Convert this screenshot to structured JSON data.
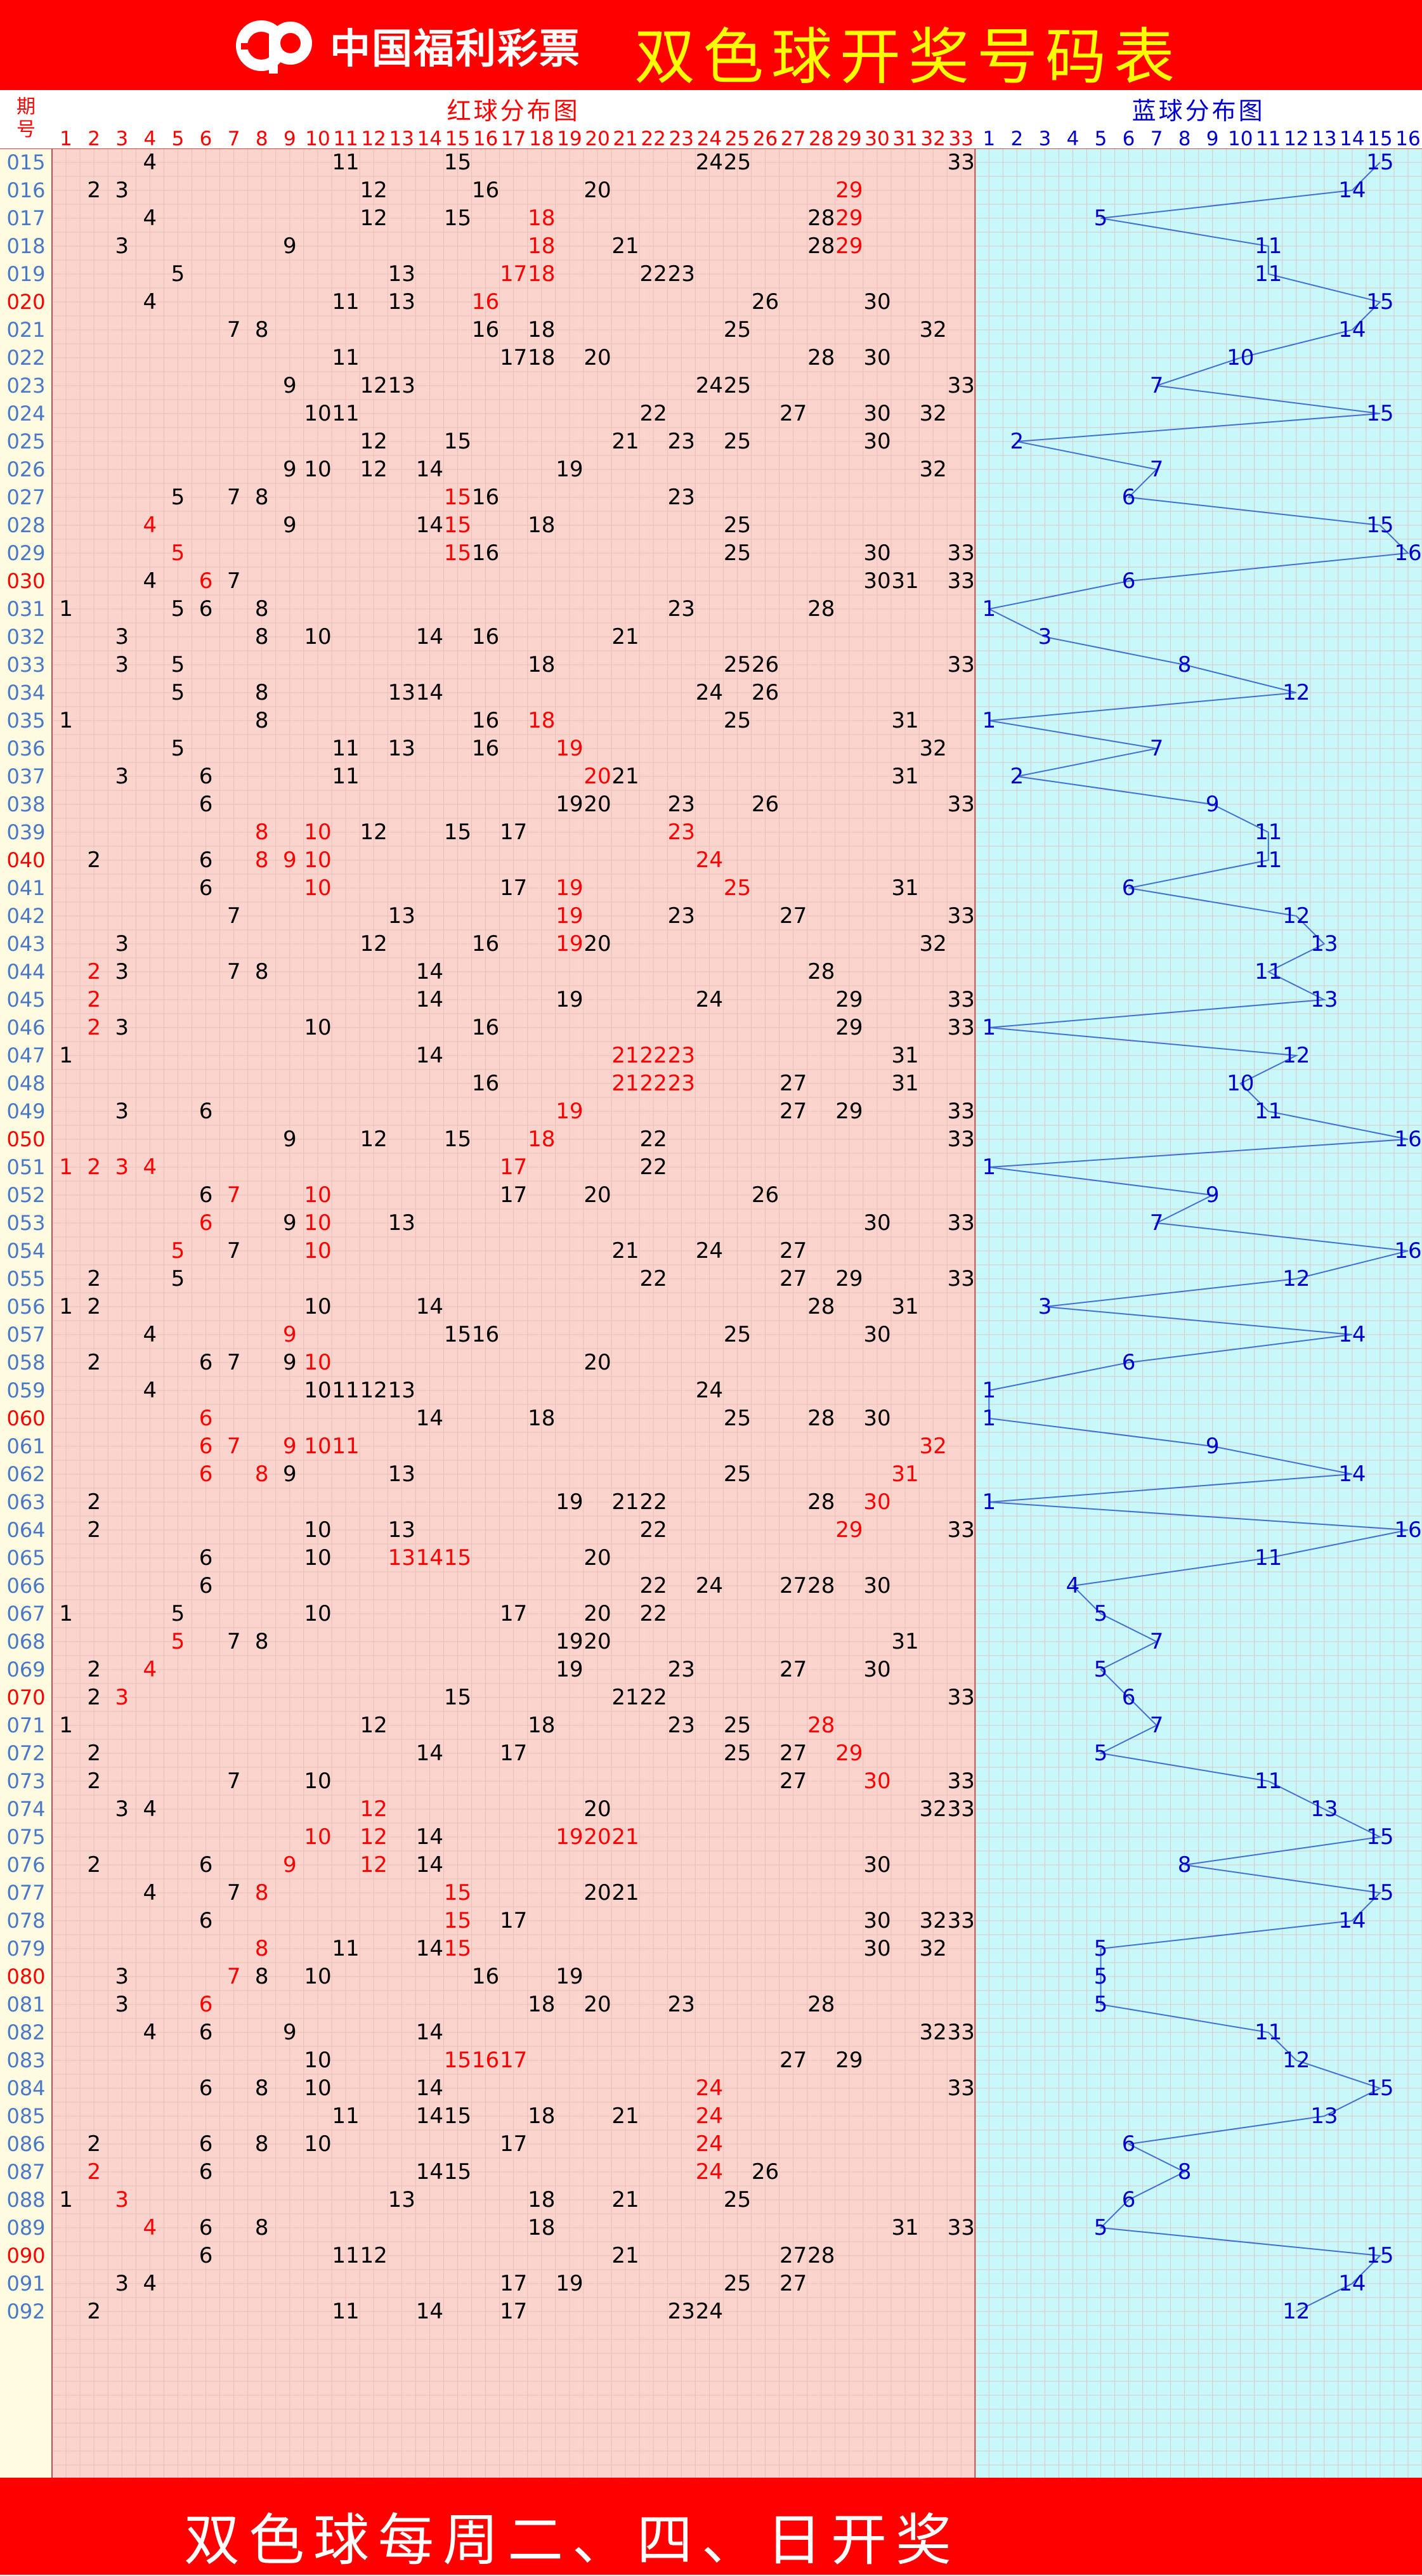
{
  "header": {
    "logo_text": "中国福利彩票",
    "title": "双色球开奖号码表"
  },
  "footer": {
    "text": "双色球每周二、四、日开奖"
  },
  "colors": {
    "banner_red": "#ff0000",
    "title_yellow": "#ffff00",
    "red_zone_bg": "#fbd5cd",
    "blue_zone_bg": "#c8f8fa",
    "period_bg": "#fffbe0",
    "number_black": "#000000",
    "repeat_red": "#ff0000",
    "blue_text": "#0000cc",
    "period_blue": "#4a78c8",
    "line_blue": "#3f6fd0"
  },
  "table": {
    "period_header": "期号",
    "red_zone_title": "红球分布图",
    "blue_zone_title": "蓝球分布图"
  },
  "chart_data": {
    "type": "table",
    "red_columns": [
      "1",
      "2",
      "3",
      "4",
      "5",
      "6",
      "7",
      "8",
      "9",
      "10",
      "11",
      "12",
      "13",
      "14",
      "15",
      "16",
      "17",
      "18",
      "19",
      "20",
      "21",
      "22",
      "23",
      "24",
      "25",
      "26",
      "27",
      "28",
      "29",
      "30",
      "31",
      "32",
      "33"
    ],
    "blue_columns": [
      "1",
      "2",
      "3",
      "4",
      "5",
      "6",
      "7",
      "8",
      "9",
      "10",
      "11",
      "12",
      "13",
      "14",
      "15",
      "16"
    ],
    "draws": [
      {
        "period": "015",
        "red": [
          4,
          11,
          15,
          24,
          25,
          33
        ],
        "blue": 15
      },
      {
        "period": "016",
        "red": [
          2,
          3,
          12,
          16,
          20,
          29
        ],
        "hot": [
          29
        ],
        "blue": 14
      },
      {
        "period": "017",
        "red": [
          4,
          12,
          15,
          18,
          28,
          29
        ],
        "hot": [
          18,
          29
        ],
        "blue": 5
      },
      {
        "period": "018",
        "red": [
          3,
          9,
          18,
          21,
          28,
          29
        ],
        "hot": [
          18,
          29
        ],
        "blue": 11
      },
      {
        "period": "019",
        "red": [
          5,
          13,
          17,
          18,
          22,
          23
        ],
        "hot": [
          17,
          18
        ],
        "blue": 11
      },
      {
        "period": "020",
        "red": [
          4,
          11,
          13,
          16,
          26,
          30
        ],
        "hot": [
          16
        ],
        "blue": 15
      },
      {
        "period": "021",
        "red": [
          7,
          8,
          16,
          18,
          25,
          32
        ],
        "blue": 14
      },
      {
        "period": "022",
        "red": [
          11,
          17,
          18,
          20,
          28,
          30
        ],
        "blue": 10
      },
      {
        "period": "023",
        "red": [
          9,
          12,
          13,
          24,
          25,
          33
        ],
        "blue": 7
      },
      {
        "period": "024",
        "red": [
          10,
          11,
          22,
          27,
          30,
          32
        ],
        "blue": 15
      },
      {
        "period": "025",
        "red": [
          12,
          15,
          21,
          23,
          25,
          30
        ],
        "blue": 2
      },
      {
        "period": "026",
        "red": [
          9,
          10,
          12,
          14,
          19,
          32
        ],
        "blue": 7
      },
      {
        "period": "027",
        "red": [
          5,
          7,
          8,
          15,
          16,
          23
        ],
        "hot": [
          15
        ],
        "blue": 6
      },
      {
        "period": "028",
        "red": [
          4,
          9,
          14,
          15,
          18,
          25
        ],
        "hot": [
          4,
          15
        ],
        "blue": 15
      },
      {
        "period": "029",
        "red": [
          5,
          15,
          16,
          25,
          30,
          33
        ],
        "hot": [
          5,
          15
        ],
        "blue": 16
      },
      {
        "period": "030",
        "red": [
          4,
          6,
          7,
          30,
          31,
          33
        ],
        "hot": [
          6
        ],
        "blue": 6
      },
      {
        "period": "031",
        "red": [
          1,
          5,
          6,
          8,
          23,
          28
        ],
        "blue": 1
      },
      {
        "period": "032",
        "red": [
          3,
          8,
          10,
          14,
          16,
          21
        ],
        "blue": 3
      },
      {
        "period": "033",
        "red": [
          3,
          5,
          18,
          25,
          26,
          33
        ],
        "blue": 8
      },
      {
        "period": "034",
        "red": [
          5,
          8,
          13,
          14,
          24,
          26
        ],
        "blue": 12
      },
      {
        "period": "035",
        "red": [
          1,
          8,
          16,
          18,
          25,
          31
        ],
        "hot": [
          18
        ],
        "blue": 1
      },
      {
        "period": "036",
        "red": [
          5,
          11,
          13,
          16,
          19,
          32
        ],
        "hot": [
          19
        ],
        "blue": 7
      },
      {
        "period": "037",
        "red": [
          3,
          6,
          11,
          20,
          21,
          31
        ],
        "hot": [
          20
        ],
        "blue": 2
      },
      {
        "period": "038",
        "red": [
          6,
          19,
          20,
          23,
          26,
          33
        ],
        "blue": 9
      },
      {
        "period": "039",
        "red": [
          8,
          10,
          12,
          15,
          17,
          23
        ],
        "hot": [
          8,
          10,
          23
        ],
        "blue": 11
      },
      {
        "period": "040",
        "red": [
          2,
          6,
          8,
          9,
          10,
          24
        ],
        "hot": [
          8,
          9,
          10,
          24
        ],
        "blue": 11
      },
      {
        "period": "041",
        "red": [
          6,
          10,
          17,
          19,
          25,
          31
        ],
        "hot": [
          10,
          19,
          25
        ],
        "blue": 6
      },
      {
        "period": "042",
        "red": [
          7,
          13,
          19,
          23,
          27,
          33
        ],
        "hot": [
          19
        ],
        "blue": 12
      },
      {
        "period": "043",
        "red": [
          3,
          12,
          16,
          19,
          20,
          32
        ],
        "hot": [
          19
        ],
        "blue": 13
      },
      {
        "period": "044",
        "red": [
          2,
          3,
          7,
          8,
          14,
          28
        ],
        "hot": [
          2
        ],
        "blue": 11
      },
      {
        "period": "045",
        "red": [
          2,
          14,
          19,
          24,
          29,
          33
        ],
        "hot": [
          2
        ],
        "blue": 13
      },
      {
        "period": "046",
        "red": [
          2,
          3,
          10,
          16,
          29,
          33
        ],
        "hot": [
          2
        ],
        "blue": 1
      },
      {
        "period": "047",
        "red": [
          1,
          14,
          21,
          22,
          23,
          31
        ],
        "hot": [
          21,
          22,
          23
        ],
        "blue": 12
      },
      {
        "period": "048",
        "red": [
          16,
          21,
          22,
          23,
          27,
          31
        ],
        "hot": [
          21,
          22,
          23
        ],
        "blue": 10
      },
      {
        "period": "049",
        "red": [
          3,
          6,
          19,
          27,
          29,
          33
        ],
        "hot": [
          19
        ],
        "blue": 11
      },
      {
        "period": "050",
        "red": [
          9,
          12,
          15,
          18,
          22,
          33
        ],
        "hot": [
          18
        ],
        "blue": 16
      },
      {
        "period": "051",
        "red": [
          1,
          2,
          3,
          4,
          17,
          22
        ],
        "hot": [
          1,
          2,
          3,
          4,
          17
        ],
        "blue": 1
      },
      {
        "period": "052",
        "red": [
          6,
          7,
          10,
          17,
          20,
          26
        ],
        "hot": [
          7,
          10
        ],
        "blue": 9
      },
      {
        "period": "053",
        "red": [
          6,
          9,
          10,
          13,
          30,
          33
        ],
        "hot": [
          6,
          10
        ],
        "blue": 7
      },
      {
        "period": "054",
        "red": [
          5,
          7,
          10,
          21,
          24,
          27
        ],
        "hot": [
          5,
          10
        ],
        "blue": 16
      },
      {
        "period": "055",
        "red": [
          2,
          5,
          22,
          27,
          29,
          33
        ],
        "blue": 12
      },
      {
        "period": "056",
        "red": [
          1,
          2,
          10,
          14,
          28,
          31
        ],
        "blue": 3
      },
      {
        "period": "057",
        "red": [
          4,
          9,
          15,
          16,
          25,
          30
        ],
        "hot": [
          9
        ],
        "blue": 14
      },
      {
        "period": "058",
        "red": [
          2,
          6,
          7,
          9,
          10,
          20
        ],
        "hot": [
          10
        ],
        "blue": 6
      },
      {
        "period": "059",
        "red": [
          4,
          10,
          11,
          12,
          13,
          24
        ],
        "blue": 1
      },
      {
        "period": "060",
        "red": [
          6,
          14,
          18,
          25,
          28,
          30
        ],
        "hot": [
          6
        ],
        "blue": 1
      },
      {
        "period": "061",
        "red": [
          6,
          7,
          9,
          10,
          11,
          32
        ],
        "hot": [
          6,
          7,
          9,
          10,
          11,
          32
        ],
        "blue": 9
      },
      {
        "period": "062",
        "red": [
          6,
          8,
          9,
          13,
          25,
          31
        ],
        "hot": [
          6,
          8,
          31
        ],
        "blue": 14
      },
      {
        "period": "063",
        "red": [
          2,
          19,
          21,
          22,
          28,
          30
        ],
        "hot": [
          30
        ],
        "blue": 1
      },
      {
        "period": "064",
        "red": [
          2,
          10,
          13,
          22,
          29,
          33
        ],
        "hot": [
          29
        ],
        "blue": 16
      },
      {
        "period": "065",
        "red": [
          6,
          10,
          13,
          14,
          15,
          20
        ],
        "hot": [
          13,
          14,
          15
        ],
        "blue": 11
      },
      {
        "period": "066",
        "red": [
          6,
          22,
          24,
          27,
          28,
          30
        ],
        "blue": 4
      },
      {
        "period": "067",
        "red": [
          1,
          5,
          10,
          17,
          20,
          22
        ],
        "blue": 5
      },
      {
        "period": "068",
        "red": [
          5,
          7,
          8,
          19,
          20,
          31
        ],
        "hot": [
          5
        ],
        "blue": 7
      },
      {
        "period": "069",
        "red": [
          2,
          4,
          19,
          23,
          27,
          30
        ],
        "hot": [
          4
        ],
        "blue": 5
      },
      {
        "period": "070",
        "red": [
          2,
          3,
          15,
          21,
          22,
          33
        ],
        "hot": [
          3
        ],
        "blue": 6
      },
      {
        "period": "071",
        "red": [
          1,
          12,
          18,
          23,
          25,
          28
        ],
        "hot": [
          28
        ],
        "blue": 7
      },
      {
        "period": "072",
        "red": [
          2,
          14,
          17,
          25,
          27,
          29
        ],
        "hot": [
          29
        ],
        "blue": 5
      },
      {
        "period": "073",
        "red": [
          2,
          7,
          10,
          27,
          30,
          33
        ],
        "hot": [
          30
        ],
        "blue": 11
      },
      {
        "period": "074",
        "red": [
          3,
          4,
          12,
          20,
          32,
          33
        ],
        "hot": [
          12
        ],
        "blue": 13
      },
      {
        "period": "075",
        "red": [
          10,
          12,
          14,
          19,
          20,
          21
        ],
        "hot": [
          10,
          12,
          19,
          20,
          21
        ],
        "blue": 15
      },
      {
        "period": "076",
        "red": [
          2,
          6,
          9,
          12,
          14,
          30
        ],
        "hot": [
          9,
          12
        ],
        "blue": 8
      },
      {
        "period": "077",
        "red": [
          4,
          7,
          8,
          15,
          20,
          21
        ],
        "hot": [
          8,
          15
        ],
        "blue": 15
      },
      {
        "period": "078",
        "red": [
          6,
          15,
          17,
          30,
          32,
          33
        ],
        "hot": [
          15
        ],
        "blue": 14
      },
      {
        "period": "079",
        "red": [
          8,
          11,
          14,
          15,
          30,
          32
        ],
        "hot": [
          8,
          15
        ],
        "blue": 5
      },
      {
        "period": "080",
        "red": [
          3,
          7,
          8,
          10,
          16,
          19
        ],
        "hot": [
          7
        ],
        "blue": 5
      },
      {
        "period": "081",
        "red": [
          3,
          6,
          18,
          20,
          23,
          28
        ],
        "hot": [
          6
        ],
        "blue": 5
      },
      {
        "period": "082",
        "red": [
          4,
          6,
          9,
          14,
          32,
          33
        ],
        "blue": 11
      },
      {
        "period": "083",
        "red": [
          10,
          15,
          16,
          17,
          27,
          29
        ],
        "hot": [
          15,
          16,
          17
        ],
        "blue": 12
      },
      {
        "period": "084",
        "red": [
          6,
          8,
          10,
          14,
          24,
          33
        ],
        "hot": [
          24
        ],
        "blue": 15
      },
      {
        "period": "085",
        "red": [
          11,
          14,
          15,
          18,
          21,
          24
        ],
        "hot": [
          24
        ],
        "blue": 13
      },
      {
        "period": "086",
        "red": [
          2,
          6,
          8,
          10,
          17,
          24
        ],
        "hot": [
          24
        ],
        "blue": 6
      },
      {
        "period": "087",
        "red": [
          2,
          6,
          14,
          15,
          24,
          26
        ],
        "hot": [
          2,
          24
        ],
        "blue": 8
      },
      {
        "period": "088",
        "red": [
          1,
          3,
          13,
          18,
          21,
          25
        ],
        "hot": [
          3
        ],
        "blue": 6
      },
      {
        "period": "089",
        "red": [
          4,
          6,
          8,
          18,
          31,
          33
        ],
        "hot": [
          4
        ],
        "blue": 5
      },
      {
        "period": "090",
        "red": [
          6,
          11,
          12,
          21,
          27,
          28
        ],
        "blue": 15
      },
      {
        "period": "091",
        "red": [
          3,
          4,
          17,
          19,
          25,
          27
        ],
        "blue": 14
      },
      {
        "period": "092",
        "red": [
          2,
          11,
          14,
          17,
          23,
          24
        ],
        "blue": 12
      }
    ]
  }
}
